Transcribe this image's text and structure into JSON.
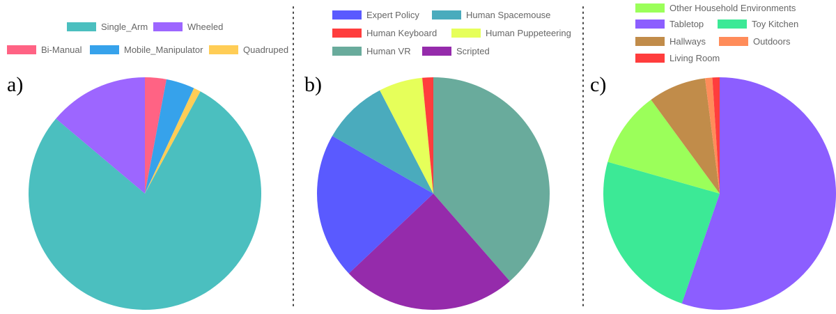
{
  "figure": {
    "panels": [
      {
        "label": "a)"
      },
      {
        "label": "b)"
      },
      {
        "label": "c)"
      }
    ]
  },
  "chart_data": [
    {
      "type": "pie",
      "legend_position": "top",
      "labels": [
        "Single_Arm",
        "Wheeled",
        "Bi-Manual",
        "Mobile_Manipulator",
        "Quadruped"
      ],
      "values": [
        79,
        14,
        3,
        4,
        1
      ],
      "colors": [
        "#4bbfbf",
        "#9d66ff",
        "#ff6384",
        "#36a2eb",
        "#ffcd56"
      ],
      "start_label_order": [
        "Bi-Manual",
        "Mobile_Manipulator",
        "Quadruped",
        "Single_Arm",
        "Wheeled"
      ]
    },
    {
      "type": "pie",
      "legend_position": "top",
      "labels": [
        "Expert Policy",
        "Human Spacemouse",
        "Human Keyboard",
        "Human Puppeteering",
        "Human VR",
        "Scripted"
      ],
      "values": [
        20,
        9,
        1.5,
        6,
        38,
        24
      ],
      "colors": [
        "#5a5aff",
        "#4aabbd",
        "#ff3d3d",
        "#e6ff5a",
        "#69ab9c",
        "#952bab"
      ],
      "start_label_order": [
        "Human VR",
        "Scripted",
        "Expert Policy",
        "Human Spacemouse",
        "Human Puppeteering",
        "Human Keyboard"
      ]
    },
    {
      "type": "pie",
      "legend_position": "top",
      "labels": [
        "Other Household Environments",
        "Tabletop",
        "Toy Kitchen",
        "Hallways",
        "Outdoors",
        "Living Room"
      ],
      "values": [
        10.5,
        55,
        24,
        8,
        1,
        1
      ],
      "colors": [
        "#9bff5a",
        "#8c5eff",
        "#3ce996",
        "#c18c4a",
        "#ff8c5a",
        "#ff3d3d"
      ],
      "start_label_order": [
        "Tabletop",
        "Toy Kitchen",
        "Other Household Environments",
        "Hallways",
        "Outdoors",
        "Living Room"
      ]
    }
  ]
}
